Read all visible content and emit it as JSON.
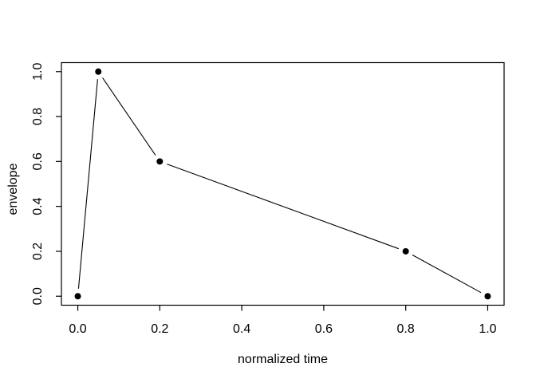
{
  "chart_data": {
    "type": "line",
    "style": "r-base-points-and-lines",
    "title": "",
    "xlabel": "normalized time",
    "ylabel": "envelope",
    "x": [
      0.0,
      0.05,
      0.2,
      0.8,
      1.0
    ],
    "y": [
      0.0,
      1.0,
      0.6,
      0.2,
      0.0
    ],
    "x_ticks": [
      0.0,
      0.2,
      0.4,
      0.6,
      0.8,
      1.0
    ],
    "y_ticks": [
      0.0,
      0.2,
      0.4,
      0.6,
      0.8,
      1.0
    ],
    "x_tick_labels": [
      "0.0",
      "0.2",
      "0.4",
      "0.6",
      "0.8",
      "1.0"
    ],
    "y_tick_labels": [
      "0.0",
      "0.2",
      "0.4",
      "0.6",
      "0.8",
      "1.0"
    ],
    "xlim": [
      -0.04,
      1.04
    ],
    "ylim": [
      -0.04,
      1.04
    ],
    "grid": false,
    "legend": null,
    "marker": "filled-circle",
    "line_color": "#000000",
    "point_color": "#000000",
    "axis_color": "#000000",
    "background": "#ffffff"
  }
}
